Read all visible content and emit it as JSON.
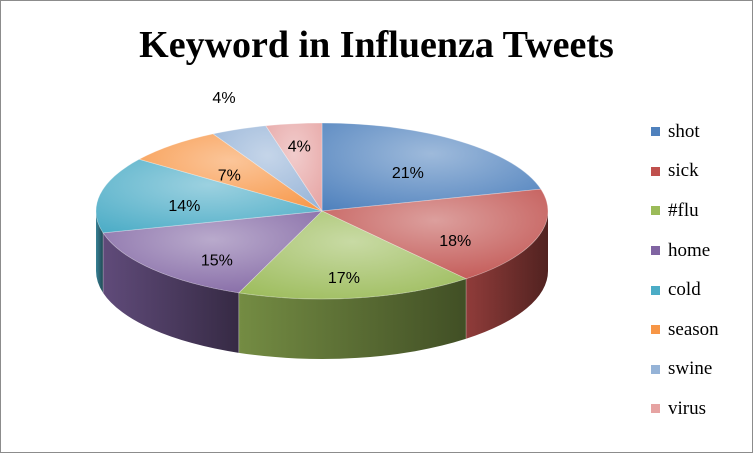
{
  "chart_data": {
    "type": "pie",
    "title": "Keyword in Influenza Tweets",
    "categories": [
      "shot",
      "sick",
      "#flu",
      "home",
      "cold",
      "season",
      "swine",
      "virus"
    ],
    "values": [
      21,
      18,
      17,
      15,
      14,
      7,
      4,
      4
    ],
    "data_labels": [
      "21%",
      "18%",
      "17%",
      "15%",
      "14%",
      "7%",
      "4%",
      "4%"
    ],
    "colors": [
      "#4f81bd",
      "#c0504d",
      "#9bbb59",
      "#8064a2",
      "#4bacc6",
      "#f79646",
      "#95b3d7",
      "#e6a3a2"
    ],
    "legend_position": "right",
    "style": "3d"
  }
}
